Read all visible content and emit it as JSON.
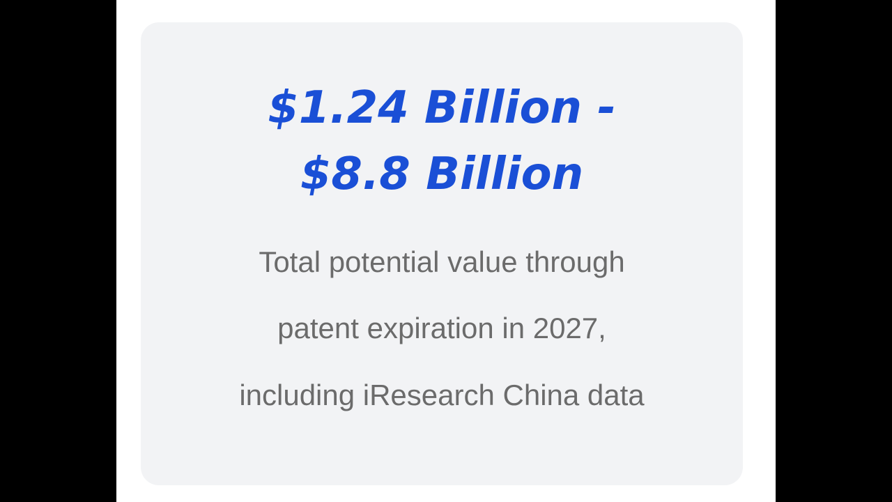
{
  "stat": {
    "value_lines": [
      "$1.24 Billion -",
      "$8.8 Billion"
    ],
    "description_lines": [
      "Total potential value through",
      "patent expiration in 2027,",
      "including iResearch China data"
    ]
  }
}
